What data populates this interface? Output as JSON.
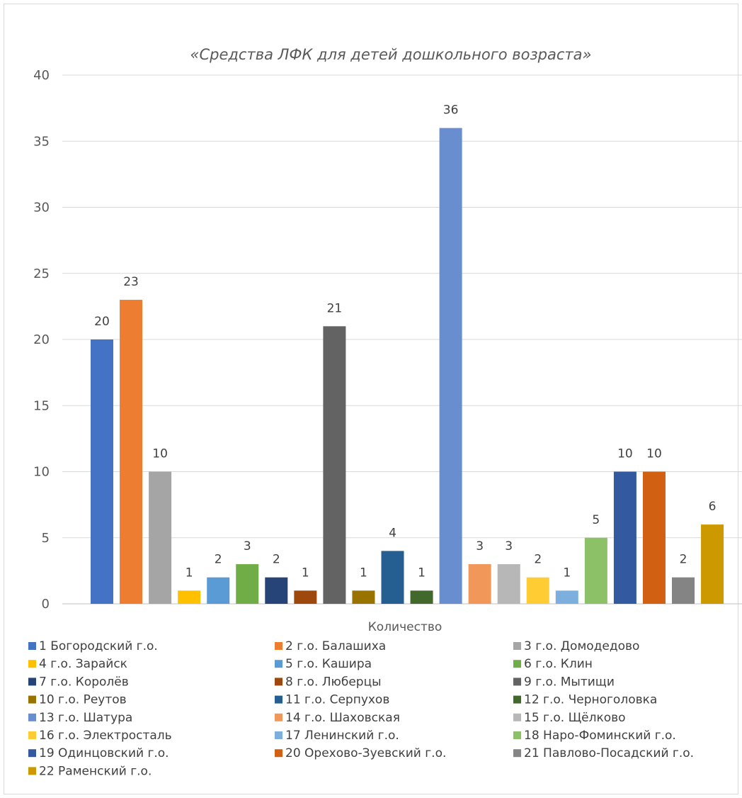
{
  "chart_data": {
    "type": "bar",
    "title": "«Средства ЛФК для детей дошкольного возраста»",
    "xlabel": "Количество",
    "ylabel": "",
    "ylim": [
      0,
      40
    ],
    "yticks": [
      0,
      5,
      10,
      15,
      20,
      25,
      30,
      35,
      40
    ],
    "grid": true,
    "legend_position": "bottom",
    "categories": [
      "Количество"
    ],
    "series": [
      {
        "name": "1 Богородский г.о.",
        "value": 20,
        "color": "#4472C4"
      },
      {
        "name": "2 г.о. Балашиха",
        "value": 23,
        "color": "#ED7D31"
      },
      {
        "name": "3 г.о. Домодедово",
        "value": 10,
        "color": "#A5A5A5"
      },
      {
        "name": "4 г.о. Зарайск",
        "value": 1,
        "color": "#FFC000"
      },
      {
        "name": "5 г.о. Кашира",
        "value": 2,
        "color": "#5B9BD5"
      },
      {
        "name": "6 г.о. Клин",
        "value": 3,
        "color": "#70AD47"
      },
      {
        "name": "7 г.о. Королёв",
        "value": 2,
        "color": "#264478"
      },
      {
        "name": "8 г.о. Люберцы",
        "value": 1,
        "color": "#9E480E"
      },
      {
        "name": "9 г.о. Мытищи",
        "value": 21,
        "color": "#636363"
      },
      {
        "name": "10 г.о. Реутов",
        "value": 1,
        "color": "#997300"
      },
      {
        "name": "11 г.о. Серпухов",
        "value": 4,
        "color": "#255E91"
      },
      {
        "name": "12 г.о. Черноголовка",
        "value": 1,
        "color": "#43682B"
      },
      {
        "name": "13 г.о. Шатура",
        "value": 36,
        "color": "#698ED0"
      },
      {
        "name": "14 г.о. Шаховская",
        "value": 3,
        "color": "#F1975A"
      },
      {
        "name": "15 г.о. Щёлково",
        "value": 3,
        "color": "#B7B7B7"
      },
      {
        "name": "16 г.о. Электросталь",
        "value": 2,
        "color": "#FFCD33"
      },
      {
        "name": "17 Ленинский г.о.",
        "value": 1,
        "color": "#7CAFDD"
      },
      {
        "name": "18 Наро-Фоминский г.о.",
        "value": 5,
        "color": "#8CC168"
      },
      {
        "name": "19 Одинцовский г.о.",
        "value": 10,
        "color": "#335AA1"
      },
      {
        "name": "20 Орехово-Зуевский г.о.",
        "value": 10,
        "color": "#D26012"
      },
      {
        "name": "21 Павлово-Посадский г.о.",
        "value": 2,
        "color": "#848484"
      },
      {
        "name": "22 Раменский г.о.",
        "value": 6,
        "color": "#CC9A00"
      }
    ]
  },
  "colors": {
    "gridline": "#d9d9d9",
    "axis": "#bfbfbf"
  }
}
